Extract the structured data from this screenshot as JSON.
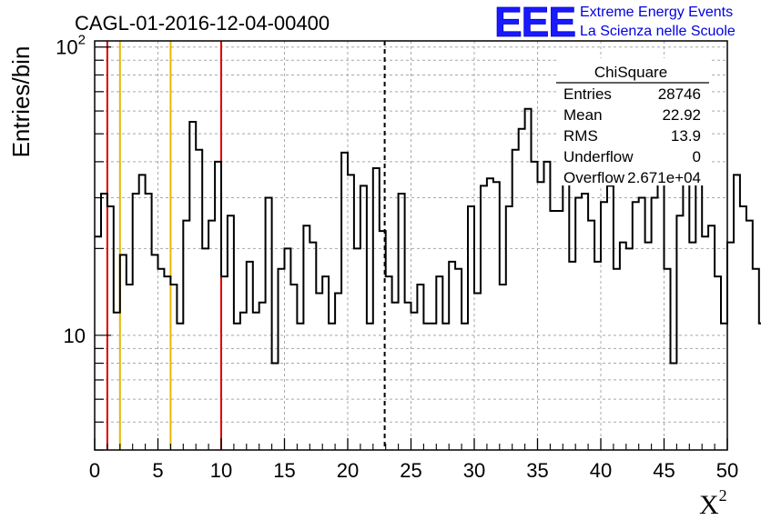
{
  "chart_data": {
    "type": "bar",
    "title": "CAGL-01-2016-12-04-00400",
    "ylabel": "Entries/bin",
    "xlabel_base": "X",
    "xlabel_sup": "2",
    "xlim": [
      0,
      50
    ],
    "ylim": [
      4,
      105
    ],
    "log_y": true,
    "grid": true,
    "bin_width": 0.5,
    "x_ticks": [
      "0",
      "5",
      "10",
      "15",
      "20",
      "25",
      "30",
      "35",
      "40",
      "45",
      "50"
    ],
    "y_tick_labels": [
      {
        "base": "10",
        "exp": ""
      },
      {
        "base": "10",
        "exp": "2"
      }
    ],
    "values": [
      22,
      31,
      28,
      12,
      19,
      15,
      31,
      36,
      31,
      19,
      17,
      16,
      15,
      11,
      25,
      55,
      44,
      20,
      25,
      40,
      16,
      26,
      11,
      12,
      18,
      12,
      13,
      30,
      8,
      17,
      20,
      15,
      11,
      24,
      21,
      14,
      16,
      11,
      14,
      43,
      36,
      20,
      33,
      11,
      38,
      23,
      16,
      13,
      31,
      13,
      12,
      15,
      11,
      11,
      16,
      11,
      18,
      17,
      11,
      28,
      14,
      33,
      35,
      34,
      15,
      28,
      44,
      52,
      61,
      40,
      34,
      40,
      27,
      27,
      35,
      18,
      30,
      31,
      25,
      18,
      29,
      33,
      17,
      21,
      20,
      29,
      30,
      21,
      30,
      44,
      17,
      8,
      26,
      45,
      21,
      35,
      22,
      24,
      16,
      11,
      21,
      36,
      28,
      25,
      17,
      11,
      15,
      17,
      15,
      38,
      19,
      14,
      28,
      22,
      24,
      13,
      12,
      21,
      16,
      10,
      12,
      14,
      14,
      15,
      12,
      23,
      20,
      26,
      18,
      14,
      17,
      21,
      19,
      16,
      22,
      19,
      14,
      17,
      10,
      16,
      12,
      9,
      8,
      17,
      21,
      22,
      29,
      19,
      14,
      14,
      28,
      18,
      20,
      15,
      24,
      26,
      16,
      10,
      21,
      18,
      13,
      14,
      12,
      20,
      22,
      12,
      12,
      15,
      22,
      16,
      15,
      27,
      11,
      13,
      24,
      14,
      14,
      14,
      15,
      14,
      12,
      14,
      10,
      23,
      11,
      19,
      10,
      16,
      19,
      10,
      9,
      10,
      12,
      10,
      15,
      22,
      13,
      12,
      17,
      8,
      12,
      11,
      13,
      10,
      16,
      11,
      11,
      9,
      11,
      18,
      9,
      15,
      14,
      17,
      11,
      13,
      9,
      10,
      10,
      11,
      12,
      18,
      13,
      14,
      9,
      14,
      9,
      9,
      10,
      17,
      13,
      9,
      14,
      12,
      12,
      10,
      14,
      10,
      8,
      14,
      11,
      7,
      12,
      10,
      13,
      15,
      12,
      9,
      12,
      7,
      9,
      13,
      11,
      10,
      7,
      12,
      8,
      11,
      11,
      13,
      9,
      9,
      10,
      10,
      10,
      8,
      11,
      10,
      7,
      12,
      14,
      9,
      7,
      15,
      11,
      10,
      7,
      12,
      9,
      8,
      11,
      12,
      9,
      10,
      8,
      14,
      9,
      8,
      9,
      12,
      11,
      9,
      13,
      8,
      7,
      11,
      10,
      11,
      8,
      8,
      14,
      10,
      12,
      9,
      10,
      8,
      9,
      13,
      9,
      12,
      8,
      7,
      11,
      7,
      9,
      10,
      8,
      11,
      9,
      10,
      11,
      10,
      8,
      9,
      10,
      9,
      7,
      11,
      9,
      10,
      8,
      9,
      8,
      10
    ],
    "vertical_lines": [
      {
        "x": 1,
        "color": "#dd0000",
        "style": "solid"
      },
      {
        "x": 2,
        "color": "#e8b800",
        "style": "solid"
      },
      {
        "x": 6,
        "color": "#e8b800",
        "style": "solid"
      },
      {
        "x": 10,
        "color": "#dd0000",
        "style": "solid"
      },
      {
        "x": 22.92,
        "color": "#000000",
        "style": "dashed"
      }
    ],
    "stats_box": {
      "title": "ChiSquare",
      "rows": [
        {
          "label": "Entries",
          "value": "28746"
        },
        {
          "label": "Mean",
          "value": "22.92"
        },
        {
          "label": "RMS",
          "value": "13.9"
        },
        {
          "label": "Underflow",
          "value": "0"
        },
        {
          "label": "Overflow",
          "value": "2.671e+04"
        }
      ]
    }
  },
  "logo": {
    "text": "EEE",
    "line1": "Extreme Energy Events",
    "line2": "La Scienza nelle Scuole"
  }
}
